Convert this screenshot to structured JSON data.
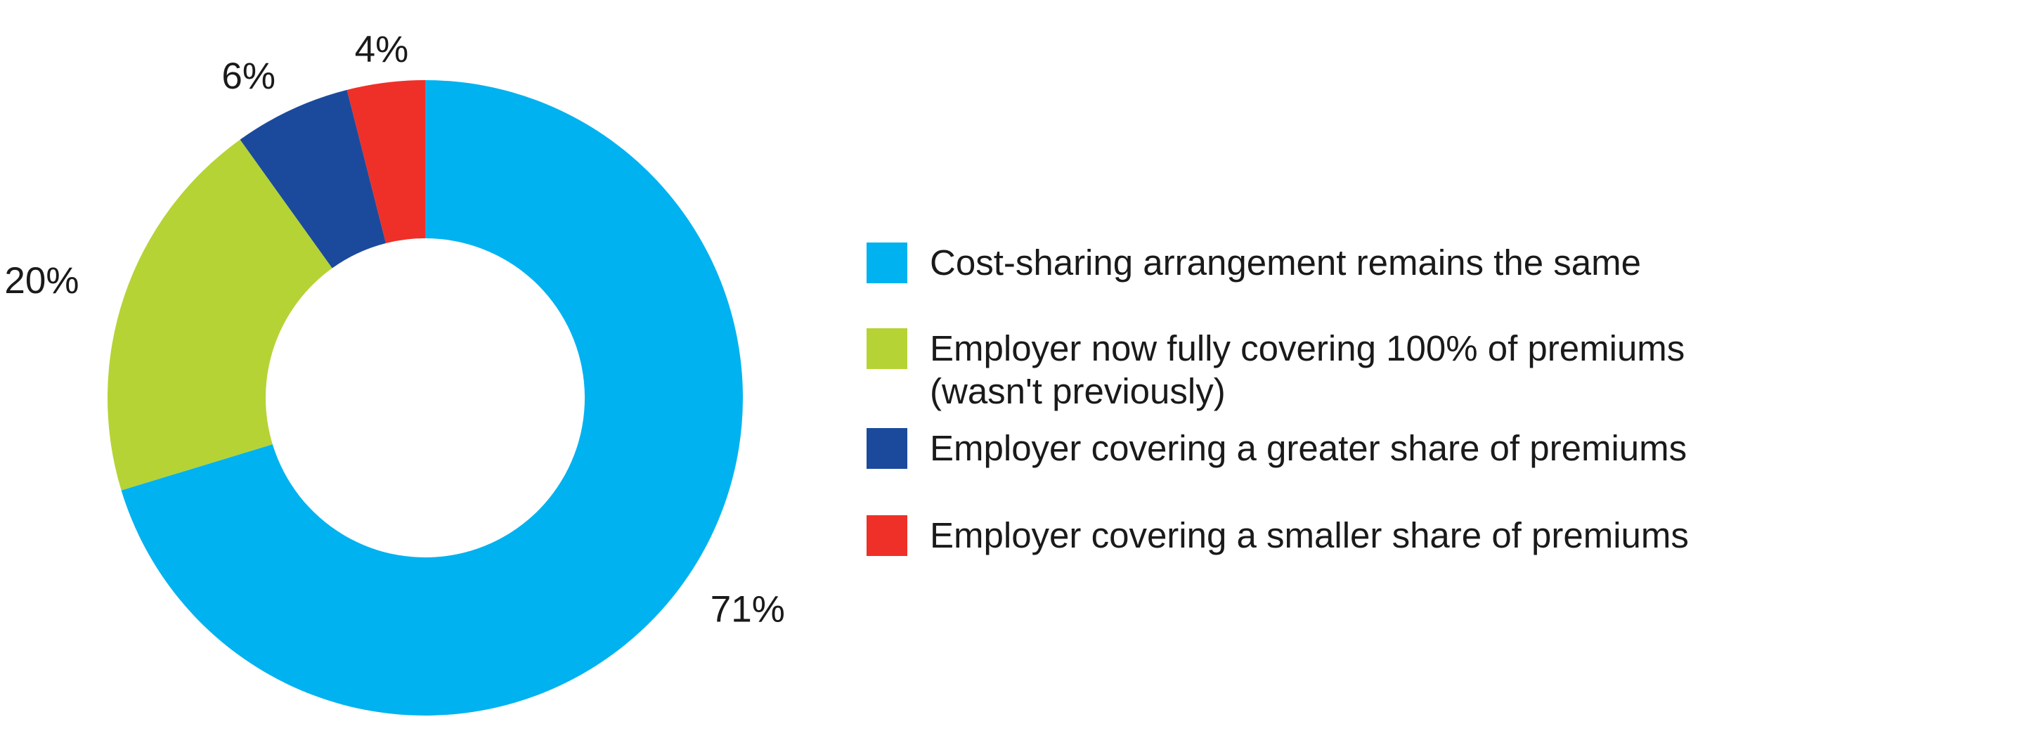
{
  "chart_data": {
    "type": "pie",
    "variant": "donut",
    "title": "",
    "slices": [
      {
        "label": "Cost-sharing arrangement remains the same",
        "value": 71,
        "display": "71%",
        "color": "#00b2ef"
      },
      {
        "label": "Employer now fully covering 100% of premiums (wasn't previously)",
        "value": 20,
        "display": "20%",
        "color": "#b5d334"
      },
      {
        "label": "Employer covering a greater share of premiums",
        "value": 6,
        "display": "6%",
        "color": "#1b4a9c"
      },
      {
        "label": "Employer covering a smaller share of premiums",
        "value": 4,
        "display": "4%",
        "color": "#ef3028"
      }
    ],
    "start": "12 o'clock",
    "direction": "clockwise",
    "legend_position": "right"
  },
  "legend": {
    "items": [
      {
        "lines": [
          "Cost-sharing arrangement remains the same"
        ],
        "color": "#00b2ef"
      },
      {
        "lines": [
          "Employer now fully covering 100% of premiums",
          "(wasn't previously)"
        ],
        "color": "#b5d334"
      },
      {
        "lines": [
          "Employer covering a greater share of premiums"
        ],
        "color": "#1b4a9c"
      },
      {
        "lines": [
          "Employer covering a smaller share of premiums"
        ],
        "color": "#ef3028"
      }
    ]
  }
}
